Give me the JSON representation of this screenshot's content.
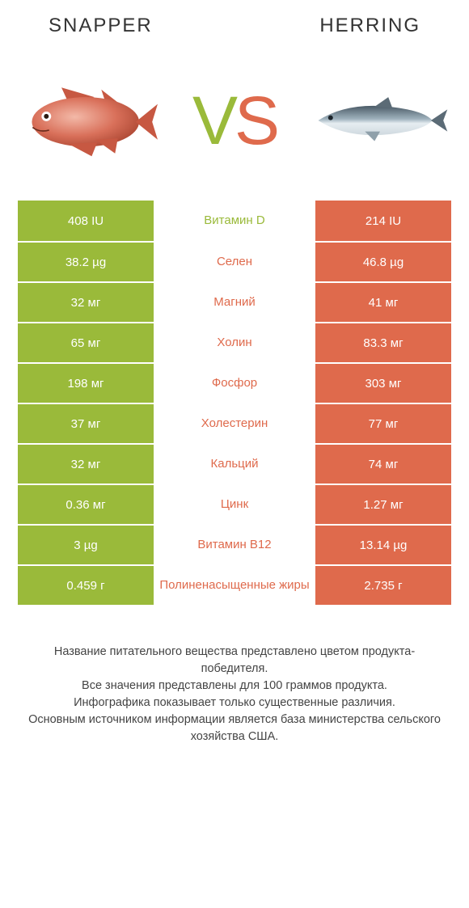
{
  "colors": {
    "left": "#9aba3a",
    "right": "#df6a4c",
    "text": "#444444",
    "bg": "#ffffff"
  },
  "header": {
    "left_title": "Snapper",
    "right_title": "Herring",
    "vs": {
      "v": "V",
      "s": "S"
    }
  },
  "rows": [
    {
      "label": "Витамин D",
      "left": "408 IU",
      "right": "214 IU",
      "winner": "left"
    },
    {
      "label": "Селен",
      "left": "38.2 µg",
      "right": "46.8 µg",
      "winner": "right"
    },
    {
      "label": "Магний",
      "left": "32 мг",
      "right": "41 мг",
      "winner": "right"
    },
    {
      "label": "Холин",
      "left": "65 мг",
      "right": "83.3 мг",
      "winner": "right"
    },
    {
      "label": "Фосфор",
      "left": "198 мг",
      "right": "303 мг",
      "winner": "right"
    },
    {
      "label": "Холестерин",
      "left": "37 мг",
      "right": "77 мг",
      "winner": "right"
    },
    {
      "label": "Кальций",
      "left": "32 мг",
      "right": "74 мг",
      "winner": "right"
    },
    {
      "label": "Цинк",
      "left": "0.36 мг",
      "right": "1.27 мг",
      "winner": "right"
    },
    {
      "label": "Витамин B12",
      "left": "3 µg",
      "right": "13.14 µg",
      "winner": "right"
    },
    {
      "label": "Полиненасыщенные жиры",
      "left": "0.459 г",
      "right": "2.735 г",
      "winner": "right"
    }
  ],
  "footer": {
    "line1": "Название питательного вещества представлено цветом продукта-победителя.",
    "line2": "Все значения представлены для 100 граммов продукта.",
    "line3": "Инфографика показывает только существенные различия.",
    "line4": "Основным источником информации является база министерства сельского хозяйства США."
  }
}
